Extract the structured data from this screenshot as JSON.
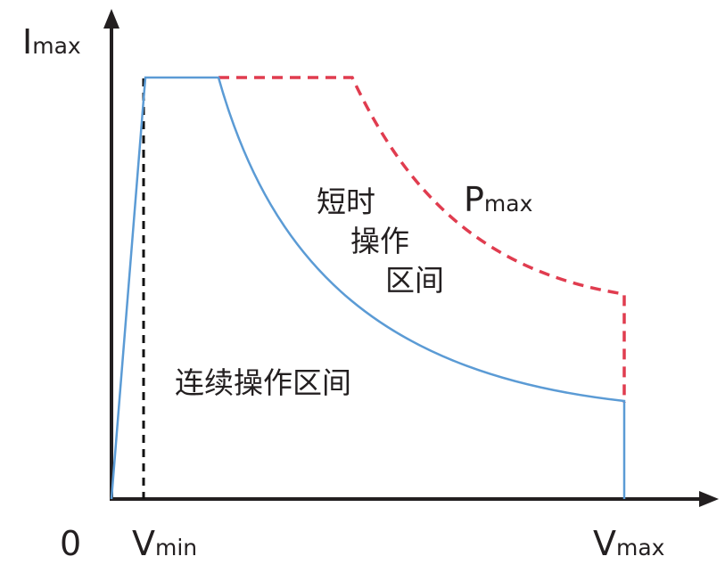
{
  "colors": {
    "axis": "#231f20",
    "continuous_boundary": "#5b9bd5",
    "power_limit": "#e03c4f",
    "v_min_marker": "#111111",
    "text": "#231f20"
  },
  "axes": {
    "y_label_main": "I",
    "y_label_sub": "max",
    "origin_label": "0",
    "x_tick_vmin_main": "V",
    "x_tick_vmin_sub": "min",
    "x_tick_vmax_main": "V",
    "x_tick_vmax_sub": "max"
  },
  "labels": {
    "p_max_main": "P",
    "p_max_sub": "max",
    "short_time_region_line1": "短时",
    "short_time_region_line2": "操作",
    "short_time_region_line3": "区间",
    "continuous_region": "连续操作区间"
  }
}
